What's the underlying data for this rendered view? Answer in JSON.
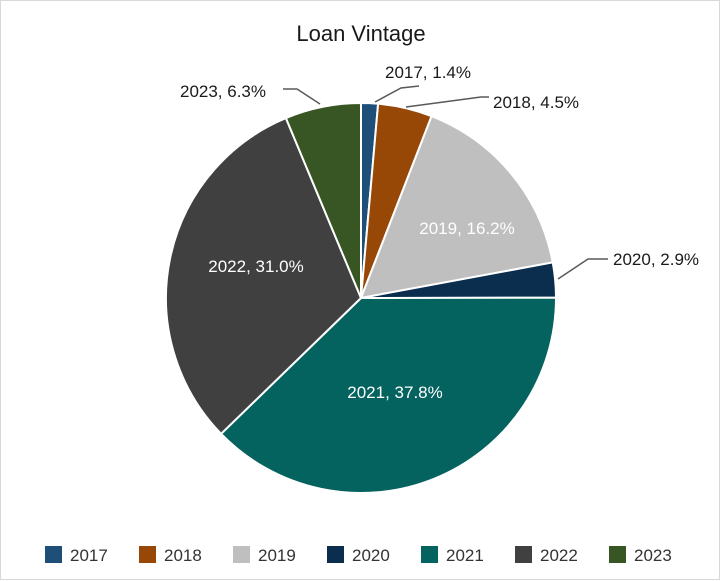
{
  "chart_data": {
    "type": "pie",
    "title": "Loan Vintage",
    "categories": [
      "2017",
      "2018",
      "2019",
      "2020",
      "2021",
      "2022",
      "2023"
    ],
    "values": [
      1.4,
      4.5,
      16.2,
      2.9,
      37.8,
      31.0,
      6.3
    ],
    "data_labels": [
      "2017, 1.4%",
      "2018, 4.5%",
      "2019, 16.2%",
      "2020, 2.9%",
      "2021, 37.8%",
      "2022, 31.0%",
      "2023, 6.3%"
    ],
    "colors": [
      "#1f4e79",
      "#974706",
      "#bfbfbf",
      "#0b2e4f",
      "#04625f",
      "#404040",
      "#375623"
    ],
    "legend_position": "bottom",
    "start_angle": "12 o'clock",
    "direction": "clockwise"
  }
}
